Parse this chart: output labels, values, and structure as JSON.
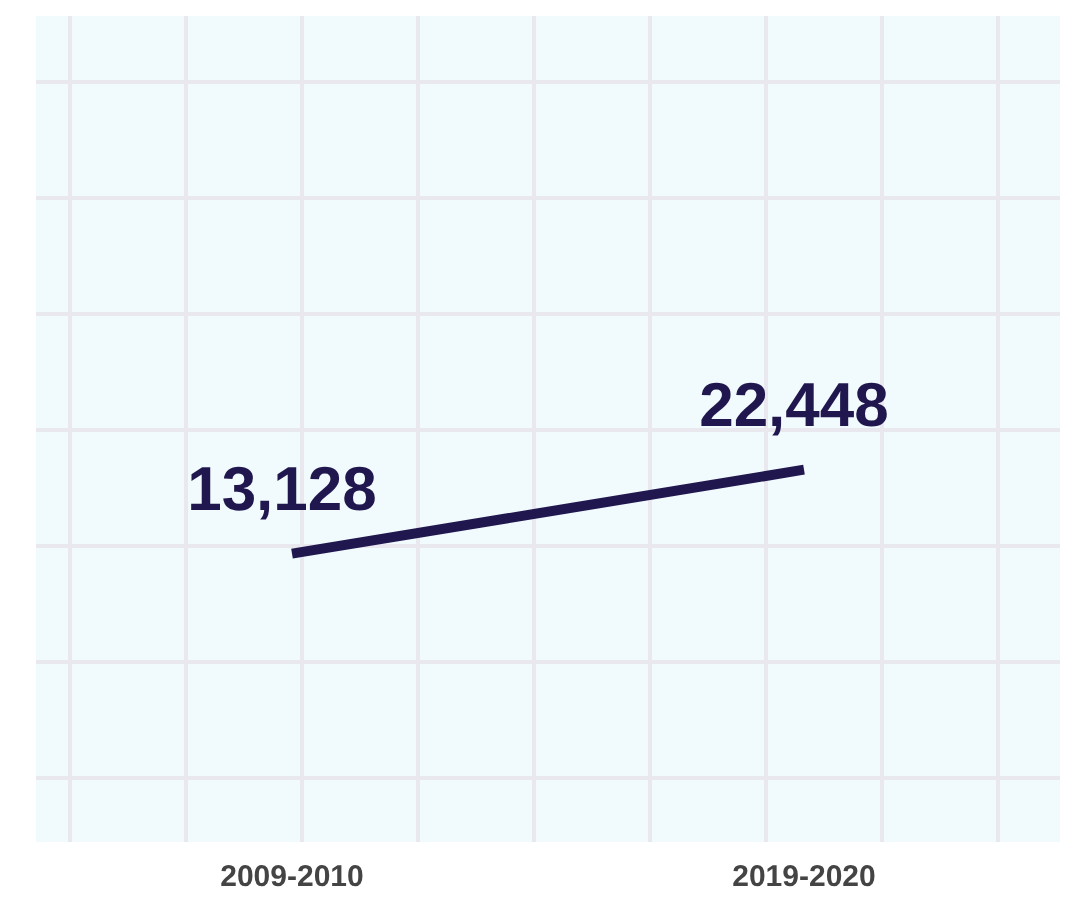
{
  "chart_data": {
    "type": "line",
    "categories": [
      "2009-2010",
      "2019-2020"
    ],
    "series": [
      {
        "color": "#21174f",
        "values": [
          13128,
          22448
        ],
        "value_labels": [
          "13,128",
          "22,448"
        ]
      }
    ],
    "tick_labels": "x",
    "grid": true,
    "marker": "none",
    "line_style": "solid"
  }
}
